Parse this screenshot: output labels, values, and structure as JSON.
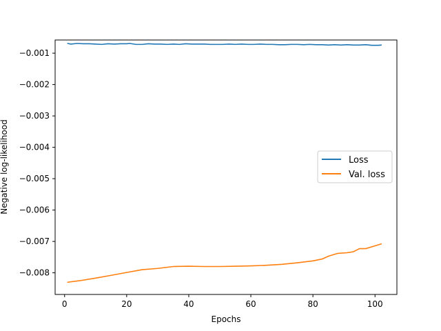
{
  "chart_data": {
    "type": "line",
    "title": "",
    "xlabel": "Epochs",
    "ylabel": "Negative log-likelihood",
    "xlim": [
      -3.05,
      107.05
    ],
    "ylim": [
      -0.00869,
      -0.00058
    ],
    "xticks": [
      0,
      20,
      40,
      60,
      80,
      100
    ],
    "yticks": [
      -0.008,
      -0.007,
      -0.006,
      -0.005,
      -0.004,
      -0.003,
      -0.002,
      -0.001
    ],
    "ytick_labels": [
      "−0.008",
      "−0.007",
      "−0.006",
      "−0.005",
      "−0.004",
      "−0.003",
      "−0.002",
      "−0.001"
    ],
    "grid": false,
    "legend_position": "center-right",
    "series": [
      {
        "name": "Loss",
        "color": "#1f77b4",
        "x": [
          1,
          2,
          4,
          6,
          8,
          10,
          12,
          14,
          16,
          18,
          20,
          21,
          23,
          25,
          27,
          29,
          31,
          33,
          35,
          37,
          39,
          41,
          43,
          45,
          47,
          49,
          51,
          53,
          55,
          57,
          59,
          61,
          63,
          65,
          67,
          69,
          71,
          73,
          75,
          77,
          79,
          81,
          83,
          85,
          87,
          89,
          91,
          93,
          95,
          97,
          99,
          101,
          102
        ],
        "y": [
          -0.00069,
          -0.00071,
          -0.00069,
          -0.0007,
          -0.0007,
          -0.00071,
          -0.00072,
          -0.0007,
          -0.00071,
          -0.0007,
          -0.0007,
          -0.00069,
          -0.00072,
          -0.00072,
          -0.0007,
          -0.00071,
          -0.00071,
          -0.00072,
          -0.00071,
          -0.00072,
          -0.0007,
          -0.00071,
          -0.00071,
          -0.00071,
          -0.00072,
          -0.00072,
          -0.00072,
          -0.00071,
          -0.00072,
          -0.00071,
          -0.00072,
          -0.00072,
          -0.00071,
          -0.00072,
          -0.00072,
          -0.00073,
          -0.00073,
          -0.00072,
          -0.00072,
          -0.00073,
          -0.00072,
          -0.00073,
          -0.00073,
          -0.00074,
          -0.00073,
          -0.00074,
          -0.00073,
          -0.00074,
          -0.00074,
          -0.00073,
          -0.00075,
          -0.00075,
          -0.00074
        ]
      },
      {
        "name": "Val. loss",
        "color": "#ff7f0e",
        "x": [
          1,
          5,
          10,
          15,
          20,
          25,
          30,
          35,
          40,
          45,
          50,
          55,
          60,
          65,
          70,
          75,
          80,
          83,
          85,
          88,
          91,
          93,
          95,
          97,
          99,
          101,
          102
        ],
        "y": [
          -0.0083,
          -0.00825,
          -0.00817,
          -0.00808,
          -0.00799,
          -0.0079,
          -0.00786,
          -0.0078,
          -0.00779,
          -0.0078,
          -0.0078,
          -0.00779,
          -0.00778,
          -0.00776,
          -0.00773,
          -0.00768,
          -0.00762,
          -0.00756,
          -0.00747,
          -0.00738,
          -0.00736,
          -0.00733,
          -0.00723,
          -0.00723,
          -0.00717,
          -0.00711,
          -0.00708
        ]
      }
    ]
  }
}
